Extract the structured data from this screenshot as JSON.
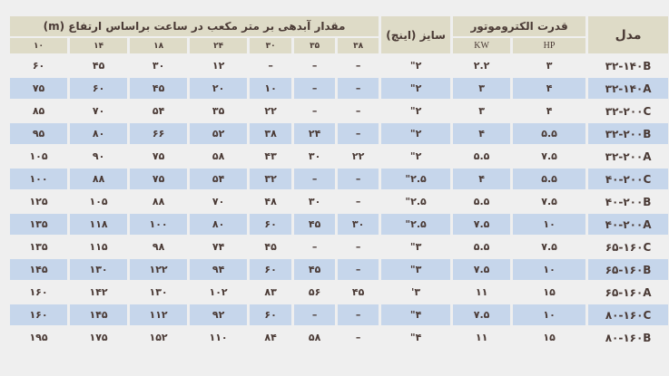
{
  "header": {
    "model": "مدل",
    "motor_power": "قدرت الکتروموتور",
    "hp": "HP",
    "kw": "KW",
    "size": "سایز (اینچ)",
    "flow": "مقدار آبدهی بر متر مکعب در ساعت براساس ارتفاع (m)",
    "heads": [
      "۳۸",
      "۳۵",
      "۳۰",
      "۲۴",
      "۱۸",
      "۱۴",
      "۱۰"
    ]
  },
  "rows": [
    {
      "model": "۳۲-۱۴۰B",
      "hp": "۳",
      "kw": "۲.۲",
      "size": "۲\"",
      "flows": [
        "–",
        "–",
        "–",
        "۱۲",
        "۳۰",
        "۴۵",
        "۶۰"
      ]
    },
    {
      "model": "۳۲-۱۴۰A",
      "hp": "۴",
      "kw": "۳",
      "size": "۲\"",
      "flows": [
        "–",
        "–",
        "۱۰",
        "۲۰",
        "۴۵",
        "۶۰",
        "۷۵"
      ]
    },
    {
      "model": "۳۲-۲۰۰C",
      "hp": "۴",
      "kw": "۳",
      "size": "۲\"",
      "flows": [
        "–",
        "–",
        "۲۲",
        "۳۵",
        "۵۴",
        "۷۰",
        "۸۵"
      ]
    },
    {
      "model": "۳۲-۲۰۰B",
      "hp": "۵.۵",
      "kw": "۴",
      "size": "۲\"",
      "flows": [
        "–",
        "۲۴",
        "۳۸",
        "۵۲",
        "۶۶",
        "۸۰",
        "۹۵"
      ]
    },
    {
      "model": "۳۲-۲۰۰A",
      "hp": "۷.۵",
      "kw": "۵.۵",
      "size": "۲\"",
      "flows": [
        "۲۲",
        "۳۰",
        "۴۳",
        "۵۸",
        "۷۵",
        "۹۰",
        "۱۰۵"
      ]
    },
    {
      "model": "۴۰-۲۰۰C",
      "hp": "۵.۵",
      "kw": "۴",
      "size": "۲.۵\"",
      "flows": [
        "–",
        "–",
        "۳۲",
        "۵۴",
        "۷۵",
        "۸۸",
        "۱۰۰"
      ]
    },
    {
      "model": "۴۰-۲۰۰B",
      "hp": "۷.۵",
      "kw": "۵.۵",
      "size": "۲.۵\"",
      "flows": [
        "–",
        "۳۰",
        "۴۸",
        "۷۰",
        "۸۸",
        "۱۰۵",
        "۱۲۵"
      ]
    },
    {
      "model": "۴۰-۲۰۰A",
      "hp": "۱۰",
      "kw": "۷.۵",
      "size": "۲.۵\"",
      "flows": [
        "۳۰",
        "۴۵",
        "۶۰",
        "۸۰",
        "۱۰۰",
        "۱۱۸",
        "۱۳۵"
      ]
    },
    {
      "model": "۶۵-۱۶۰C",
      "hp": "۷.۵",
      "kw": "۵.۵",
      "size": "۳\"",
      "flows": [
        "–",
        "–",
        "۴۵",
        "۷۴",
        "۹۸",
        "۱۱۵",
        "۱۳۵"
      ]
    },
    {
      "model": "۶۵-۱۶۰B",
      "hp": "۱۰",
      "kw": "۷.۵",
      "size": "۳\"",
      "flows": [
        "–",
        "۴۵",
        "۶۰",
        "۹۴",
        "۱۲۲",
        "۱۳۰",
        "۱۴۵"
      ]
    },
    {
      "model": "۶۵-۱۶۰A",
      "hp": "۱۵",
      "kw": "۱۱",
      "size": "۳'",
      "flows": [
        "۴۵",
        "۵۶",
        "۸۳",
        "۱۰۲",
        "۱۳۰",
        "۱۴۲",
        "۱۶۰"
      ]
    },
    {
      "model": "۸۰-۱۶۰C",
      "hp": "۱۰",
      "kw": "۷.۵",
      "size": "۴\"",
      "flows": [
        "–",
        "–",
        "۶۰",
        "۹۲",
        "۱۱۲",
        "۱۴۵",
        "۱۶۰"
      ]
    },
    {
      "model": "۸۰-۱۶۰B",
      "hp": "۱۵",
      "kw": "۱۱",
      "size": "۴\"",
      "flows": [
        "–",
        "۵۸",
        "۸۴",
        "۱۱۰",
        "۱۵۲",
        "۱۷۵",
        "۱۹۵"
      ]
    }
  ],
  "colors": {
    "header": "#dedbc7",
    "alt_row": "#c6d6eb",
    "background": "#efefef",
    "text": "#4a3a35"
  }
}
